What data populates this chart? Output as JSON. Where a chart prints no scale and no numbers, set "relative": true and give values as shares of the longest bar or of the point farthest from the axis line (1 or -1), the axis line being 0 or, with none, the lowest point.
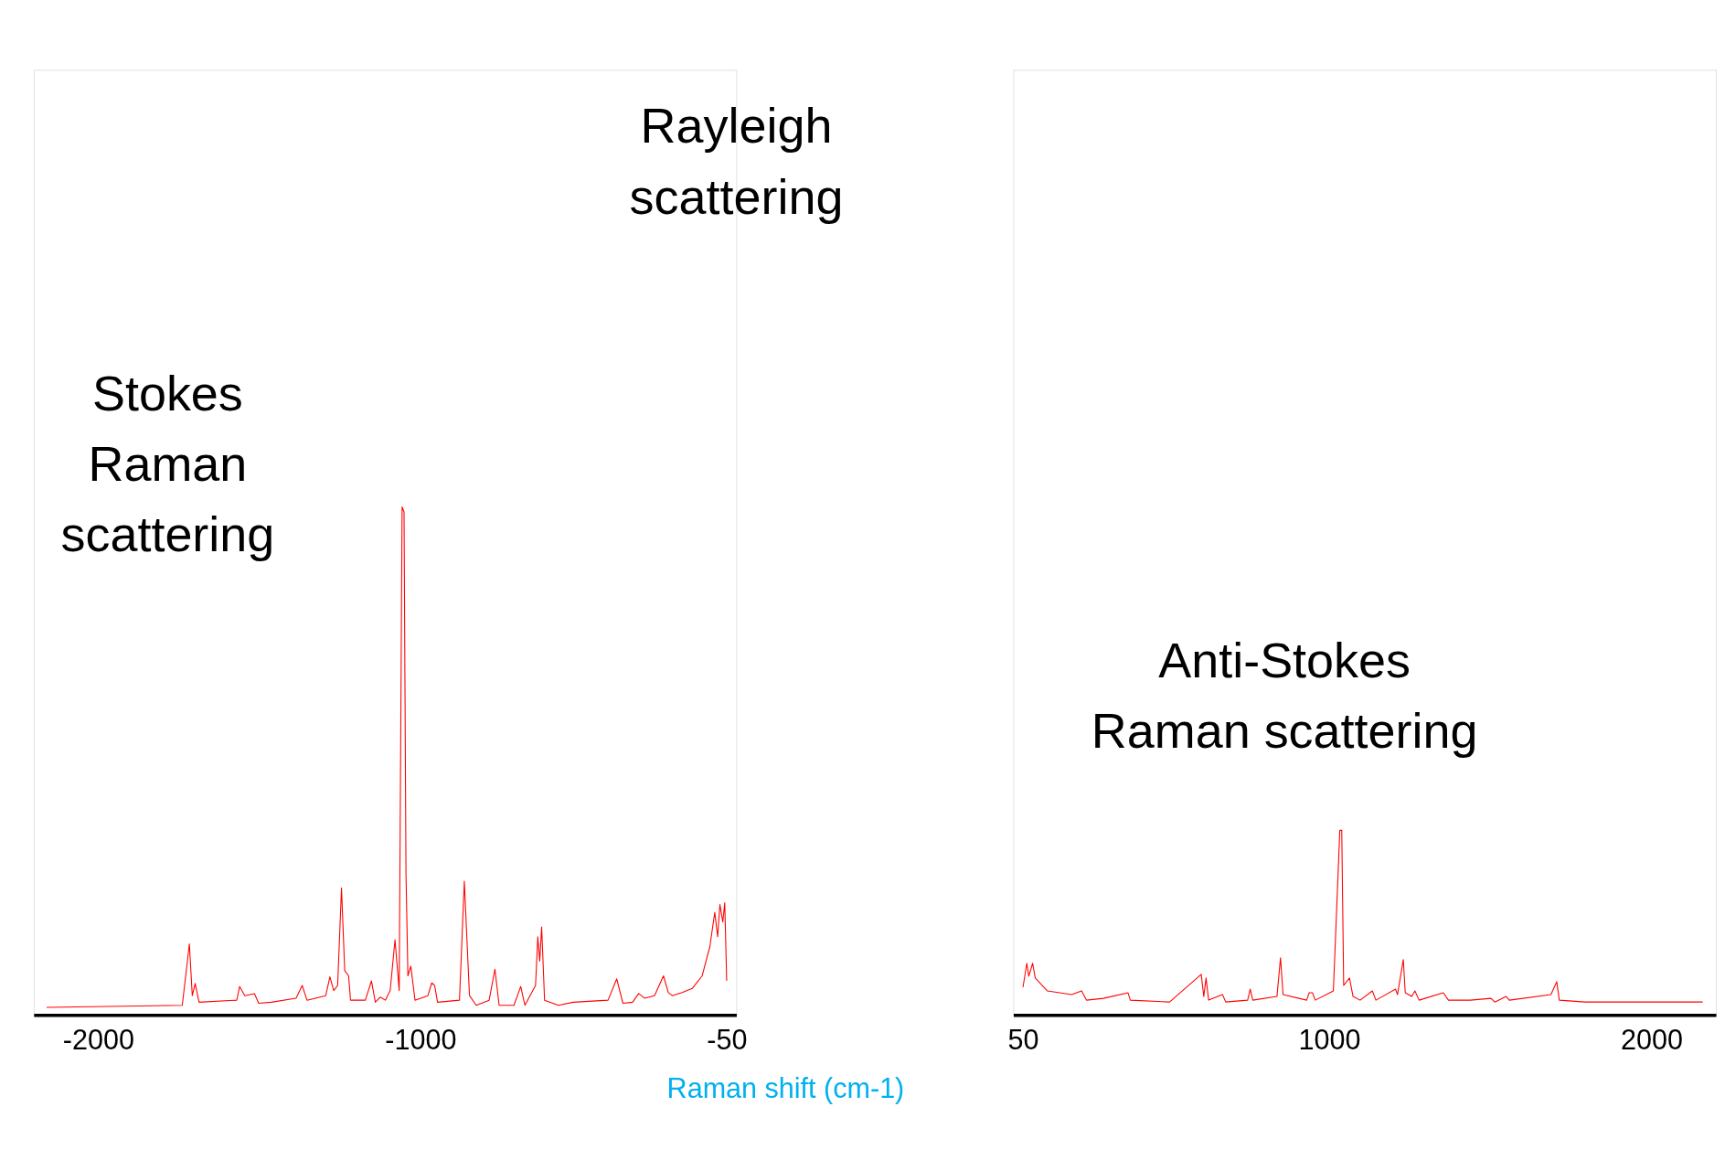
{
  "chart_data": [
    {
      "type": "line",
      "relative": true,
      "color": "#ff0000",
      "tick_labels": "x",
      "grid": false,
      "xlabel": "Raman shift (cm-1)",
      "annotations": [
        "Stokes\nRaman\nscattering",
        "Rayleigh\nscattering"
      ],
      "xlim": [
        -2200,
        -20
      ],
      "xticks": [
        {
          "value": -2000,
          "label": "-2000"
        },
        {
          "value": -1000,
          "label": "-1000"
        },
        {
          "value": -50,
          "label": "-50"
        }
      ],
      "x": [
        -2160,
        -1739,
        -1717,
        -1708,
        -1699,
        -1687,
        -1570,
        -1561,
        -1545,
        -1515,
        -1502,
        -1463,
        -1386,
        -1367,
        -1352,
        -1294,
        -1281,
        -1269,
        -1257,
        -1245,
        -1235,
        -1223,
        -1217,
        -1171,
        -1152,
        -1140,
        -1125,
        -1109,
        -1094,
        -1079,
        -1066,
        -1057,
        -1051,
        -1045,
        -1039,
        -1030,
        -1017,
        -977,
        -965,
        -956,
        -947,
        -879,
        -864,
        -848,
        -827,
        -787,
        -769,
        -756,
        -710,
        -689,
        -676,
        -643,
        -636,
        -630,
        -624,
        -615,
        -572,
        -526,
        -418,
        -391,
        -372,
        -342,
        -323,
        -305,
        -274,
        -246,
        -231,
        -219,
        -188,
        -157,
        -126,
        -102,
        -87,
        -78,
        -71,
        -62,
        -56,
        -50
      ],
      "values": [
        0.015,
        0.019,
        0.14,
        0.038,
        0.062,
        0.025,
        0.029,
        0.056,
        0.038,
        0.042,
        0.023,
        0.025,
        0.033,
        0.058,
        0.029,
        0.038,
        0.075,
        0.048,
        0.058,
        0.25,
        0.087,
        0.077,
        0.029,
        0.029,
        0.067,
        0.025,
        0.035,
        0.029,
        0.048,
        0.148,
        0.048,
        1.0,
        0.99,
        0.28,
        0.077,
        0.096,
        0.029,
        0.038,
        0.063,
        0.058,
        0.025,
        0.029,
        0.263,
        0.038,
        0.019,
        0.029,
        0.09,
        0.019,
        0.019,
        0.056,
        0.019,
        0.058,
        0.154,
        0.106,
        0.173,
        0.029,
        0.019,
        0.025,
        0.029,
        0.071,
        0.023,
        0.025,
        0.042,
        0.033,
        0.038,
        0.077,
        0.044,
        0.038,
        0.044,
        0.052,
        0.077,
        0.135,
        0.202,
        0.154,
        0.217,
        0.183,
        0.221,
        0.067
      ]
    },
    {
      "type": "line",
      "relative": true,
      "color": "#ff0000",
      "tick_labels": "x",
      "grid": false,
      "annotations": [
        "Anti-Stokes\nRaman scattering"
      ],
      "xlim": [
        20,
        2200
      ],
      "xticks": [
        50,
        {
          "value": 1000,
          "label": "1000"
        },
        {
          "value": 2000,
          "label": "2000"
        }
      ],
      "x": [
        50,
        62,
        68,
        80,
        88,
        126,
        201,
        232,
        247,
        300,
        376,
        383,
        505,
        603,
        611,
        618,
        626,
        669,
        679,
        747,
        755,
        763,
        838,
        849,
        857,
        930,
        938,
        948,
        957,
        1013,
        1033,
        1039,
        1045,
        1063,
        1074,
        1096,
        1134,
        1145,
        1206,
        1212,
        1230,
        1236,
        1256,
        1266,
        1279,
        1354,
        1370,
        1438,
        1502,
        1514,
        1549,
        1559,
        1688,
        1706,
        1714,
        1794,
        2159
      ],
      "values": [
        0.15,
        0.28,
        0.21,
        0.28,
        0.2,
        0.13,
        0.11,
        0.13,
        0.08,
        0.09,
        0.12,
        0.08,
        0.07,
        0.22,
        0.1,
        0.2,
        0.08,
        0.11,
        0.07,
        0.08,
        0.14,
        0.08,
        0.1,
        0.31,
        0.11,
        0.08,
        0.12,
        0.12,
        0.08,
        0.13,
        1.0,
        1.0,
        0.16,
        0.2,
        0.1,
        0.08,
        0.13,
        0.08,
        0.14,
        0.11,
        0.3,
        0.12,
        0.1,
        0.13,
        0.08,
        0.12,
        0.08,
        0.08,
        0.09,
        0.07,
        0.1,
        0.08,
        0.11,
        0.18,
        0.08,
        0.07,
        0.07
      ]
    }
  ]
}
